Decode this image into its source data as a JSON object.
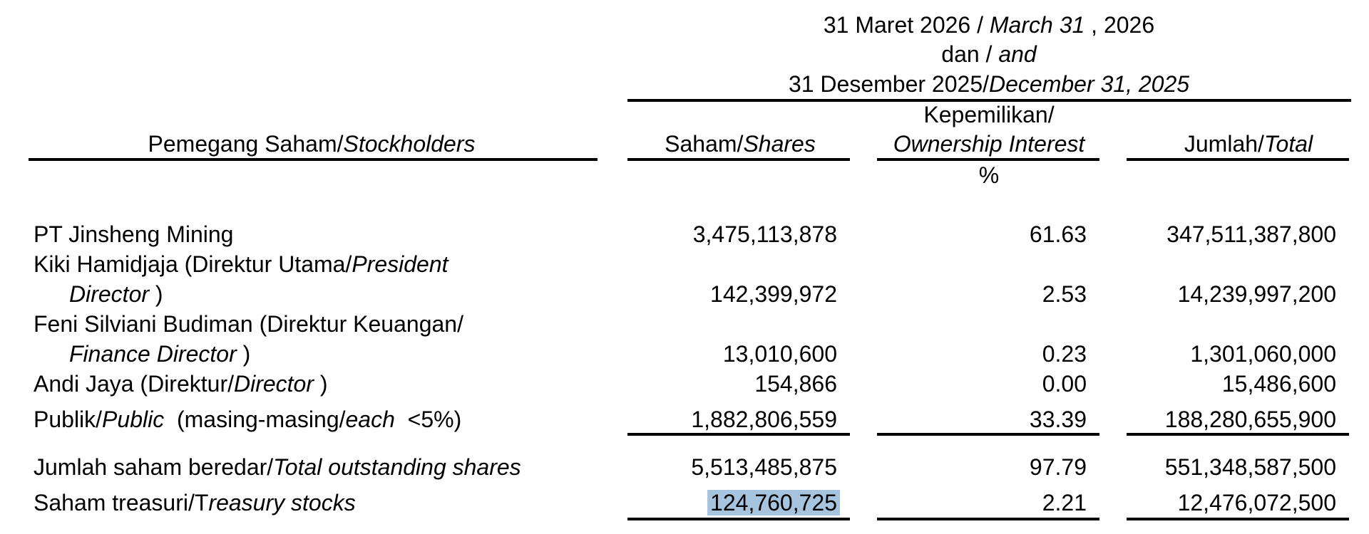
{
  "header": {
    "period_line1_a": "31 Maret 2026 / ",
    "period_line1_b": "March 31",
    "period_line1_c": " , 2026",
    "period_line2_a": "dan / ",
    "period_line2_b": "and",
    "period_line3_a": "31 Desember 2025/",
    "period_line3_b": "December 31, 2025"
  },
  "columns": {
    "stockholders_a": "Pemegang Saham/",
    "stockholders_b": "Stockholders",
    "shares_a": "Saham/",
    "shares_b": "Shares",
    "ownership_line1": "Kepemilikan/",
    "ownership_line2": "Ownership Interest",
    "ownership_unit": "%",
    "total_a": "Jumlah/",
    "total_b": "Total"
  },
  "rows": [
    {
      "name_a": "PT Jinsheng Mining",
      "shares": "3,475,113,878",
      "ownership": "61.63",
      "total": "347,511,387,800"
    },
    {
      "name_a": "Kiki Hamidjaja (Direktur Utama/",
      "name_b": "President",
      "name2_a": "Director",
      "name2_b": " )",
      "shares": "142,399,972",
      "ownership": "2.53",
      "total": "14,239,997,200"
    },
    {
      "name_a": "Feni Silviani Budiman (Direktur Keuangan/",
      "name2_a": "Finance Director",
      "name2_b": " )",
      "shares": "13,010,600",
      "ownership": "0.23",
      "total": "1,301,060,000"
    },
    {
      "name_a": "Andi Jaya (Direktur/",
      "name_b": "Director",
      "name_c": " )",
      "shares": "154,866",
      "ownership": "0.00",
      "total": "15,486,600"
    },
    {
      "name_a": "Publik/",
      "name_b": "Public",
      "name_c": "  (masing-masing/",
      "name_d": "each",
      "name_e": "  <5%)",
      "shares": "1,882,806,559",
      "ownership": "33.39",
      "total": "188,280,655,900"
    }
  ],
  "summary": [
    {
      "name_a": "Jumlah saham beredar/",
      "name_b": "Total outstanding shares",
      "shares": "5,513,485,875",
      "ownership": "97.79",
      "total": "551,348,587,500"
    },
    {
      "name_a": "Saham treasuri/T",
      "name_b": "reasury stocks",
      "shares": "124,760,725",
      "ownership": "2.21",
      "total": "12,476,072,500"
    }
  ]
}
